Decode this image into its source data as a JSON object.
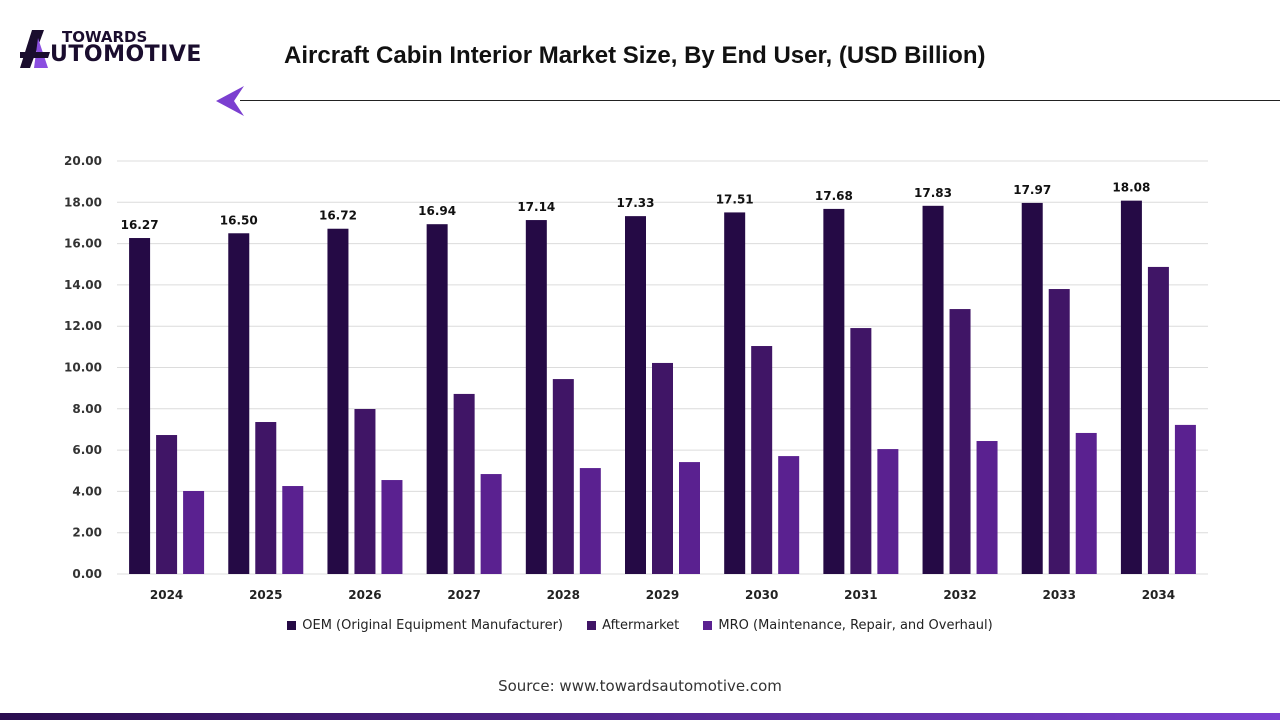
{
  "logo": {
    "line1": "TOWARDS",
    "line2": "UTOMOTIVE",
    "accent": "#8b4ee0"
  },
  "title": "Aircraft Cabin Interior Market Size, By End User, (USD Billion)",
  "source": "Source: www.towardsautomotive.com",
  "chart_data": {
    "type": "bar",
    "title": "Aircraft Cabin Interior Market Size, By End User, (USD Billion)",
    "categories": [
      "2024",
      "2025",
      "2026",
      "2027",
      "2028",
      "2029",
      "2030",
      "2031",
      "2032",
      "2033",
      "2034"
    ],
    "ylim": [
      0,
      20
    ],
    "yticks": [
      "0.00",
      "2.00",
      "4.00",
      "6.00",
      "8.00",
      "10.00",
      "12.00",
      "14.00",
      "16.00",
      "18.00",
      "20.00"
    ],
    "grid": true,
    "legend_position": "bottom",
    "series": [
      {
        "name": "OEM (Original Equipment Manufacturer)",
        "color": "#250a45",
        "values": [
          16.27,
          16.5,
          16.72,
          16.94,
          17.14,
          17.33,
          17.51,
          17.68,
          17.83,
          17.97,
          18.08
        ],
        "labels": [
          "16.27",
          "16.50",
          "16.72",
          "16.94",
          "17.14",
          "17.33",
          "17.51",
          "17.68",
          "17.83",
          "17.97",
          "18.08"
        ]
      },
      {
        "name": "Aftermarket",
        "color": "#401566",
        "values": [
          6.73,
          7.36,
          7.99,
          8.72,
          9.44,
          10.22,
          11.04,
          11.91,
          12.83,
          13.8,
          14.87
        ]
      },
      {
        "name": "MRO (Maintenance, Repair, and Overhaul)",
        "color": "#5a2190",
        "values": [
          4.02,
          4.26,
          4.55,
          4.84,
          5.13,
          5.42,
          5.71,
          6.05,
          6.44,
          6.83,
          7.22
        ]
      }
    ]
  }
}
